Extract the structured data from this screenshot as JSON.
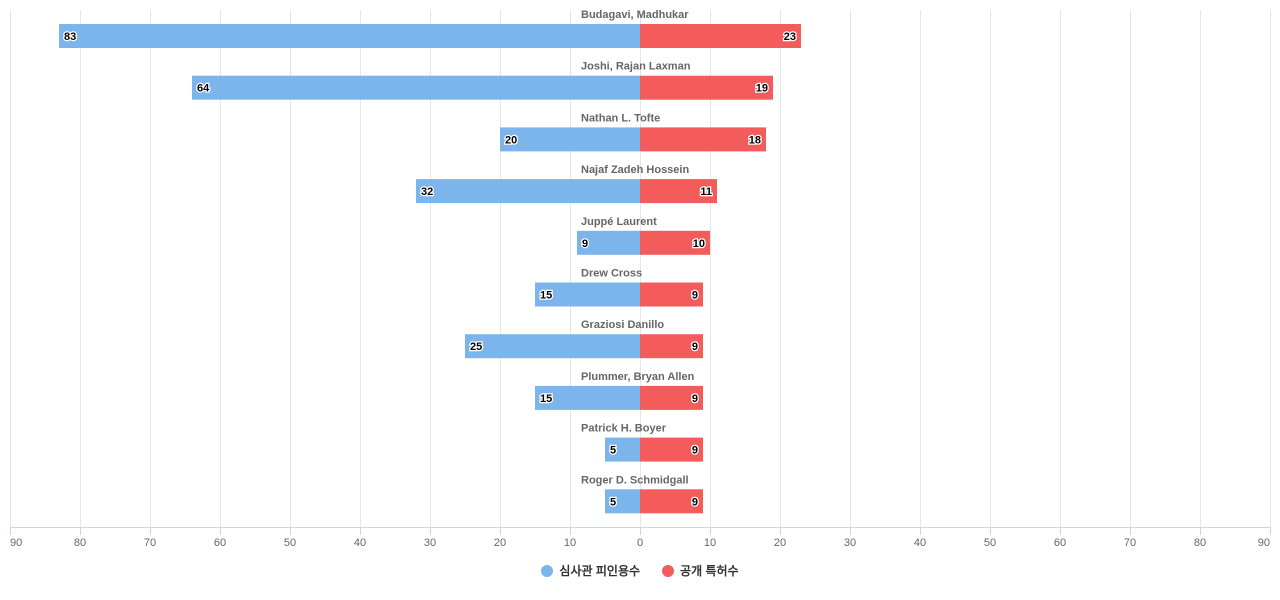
{
  "chart_data": {
    "type": "bar",
    "orientation": "horizontal-diverging",
    "categories": [
      "Budagavi, Madhukar",
      "Joshi, Rajan Laxman",
      "Nathan L. Tofte",
      "Najaf Zadeh Hossein",
      "Juppé Laurent",
      "Drew Cross",
      "Graziosi Danillo",
      "Plummer, Bryan Allen",
      "Patrick H. Boyer",
      "Roger D. Schmidgall"
    ],
    "series": [
      {
        "name": "심사관 피인용수",
        "side": "left",
        "color": "#7cb5ec",
        "values": [
          83,
          64,
          20,
          32,
          9,
          15,
          25,
          15,
          5,
          5
        ]
      },
      {
        "name": "공개 특허수",
        "side": "right",
        "color": "#f45b5b",
        "values": [
          23,
          19,
          18,
          11,
          10,
          9,
          9,
          9,
          9,
          9
        ]
      }
    ],
    "xlim": [
      -90,
      90
    ],
    "tick_values": [
      -90,
      -80,
      -70,
      -60,
      -50,
      -40,
      -30,
      -20,
      -10,
      0,
      10,
      20,
      30,
      40,
      50,
      60,
      70,
      80,
      90
    ],
    "tick_labels": [
      "90",
      "80",
      "70",
      "60",
      "50",
      "40",
      "30",
      "20",
      "10",
      "0",
      "10",
      "20",
      "30",
      "40",
      "50",
      "60",
      "70",
      "80",
      "90"
    ],
    "grid": true,
    "legend_position": "bottom-center"
  },
  "legend": {
    "items": [
      {
        "label": "심사관 피인용수",
        "color": "#7cb5ec"
      },
      {
        "label": "공개 특허수",
        "color": "#f45b5b"
      }
    ]
  }
}
